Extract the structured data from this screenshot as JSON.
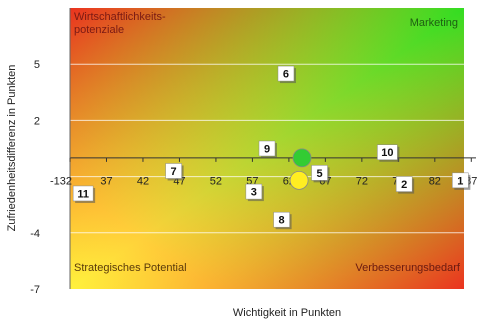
{
  "chart_data": {
    "type": "scatter",
    "title": "",
    "xlabel": "Wichtigkeit in Punkten",
    "ylabel": "Zufriedenheitsdifferenz in Punkten",
    "xlim": [
      32,
      86
    ],
    "ylim": [
      -7,
      8
    ],
    "x_crossing_y": 0,
    "x_ticks": [
      "32",
      "37",
      "42",
      "47",
      "52",
      "57",
      "62",
      "67",
      "72",
      "77",
      "82",
      "87"
    ],
    "y_ticks": [
      "5",
      "2",
      "-1",
      "-4",
      "-7"
    ],
    "grid": "horizontal",
    "background": "diagonal gradient from red (top-left and bottom-right) through yellow (bottom-left) to green (top-right)",
    "quadrant_labels": {
      "top_left": "Wirtschaftlichkeits-\npotenziale",
      "top_right": "Marketing",
      "bottom_left": "Strategisches Potential",
      "bottom_right": "Verbesserungsbedarf"
    },
    "points": [
      {
        "label": "1",
        "x": 85.5,
        "y": -1.2
      },
      {
        "label": "2",
        "x": 77.8,
        "y": -1.4
      },
      {
        "label": "3",
        "x": 57.2,
        "y": -1.8
      },
      {
        "label": "5",
        "x": 66.2,
        "y": -0.8
      },
      {
        "label": "6",
        "x": 61.6,
        "y": 4.5
      },
      {
        "label": "7",
        "x": 46.2,
        "y": -0.7
      },
      {
        "label": "8",
        "x": 61.0,
        "y": -3.3
      },
      {
        "label": "9",
        "x": 59.0,
        "y": 0.5
      },
      {
        "label": "10",
        "x": 75.5,
        "y": 0.3
      },
      {
        "label": "11",
        "x": 33.8,
        "y": -1.9
      }
    ],
    "markers": [
      {
        "color": "#33cc33",
        "x": 63.8,
        "y": 0.0
      },
      {
        "color": "#ffee22",
        "x": 63.4,
        "y": -1.2
      }
    ],
    "colors": {
      "red": "#ee2a1e",
      "yellow": "#fff23c",
      "green": "#33dd22",
      "quad_label_dark": "#7a1a14",
      "quad_label_green": "#1e5d12"
    }
  }
}
